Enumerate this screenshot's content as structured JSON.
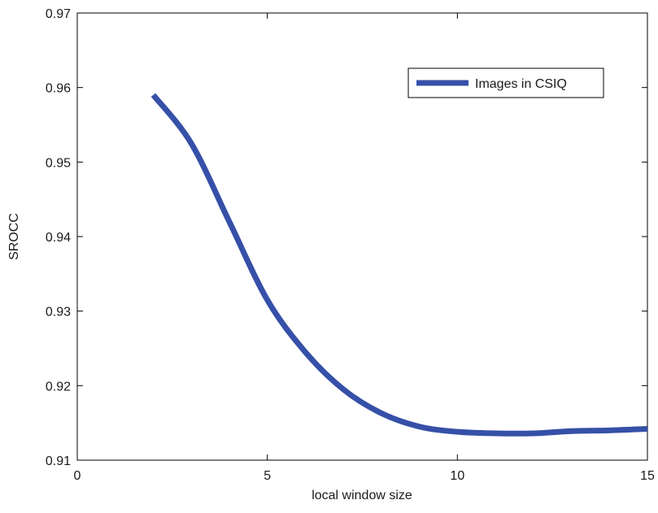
{
  "chart_data": {
    "type": "line",
    "xlabel": "local window size",
    "ylabel": "SROCC",
    "xlim": [
      0,
      15
    ],
    "ylim": [
      0.91,
      0.97
    ],
    "x_ticks": [
      0,
      5,
      10,
      15
    ],
    "x_tick_labels": [
      "0",
      "5",
      "10",
      "15"
    ],
    "y_ticks": [
      0.91,
      0.92,
      0.93,
      0.94,
      0.95,
      0.96,
      0.97
    ],
    "y_tick_labels": [
      "0.91",
      "0.92",
      "0.93",
      "0.94",
      "0.95",
      "0.96",
      "0.97"
    ],
    "grid": false,
    "legend_position": "top-right",
    "series": [
      {
        "name": "Images in CSIQ",
        "color": "#3650a8",
        "x": [
          2,
          3,
          4,
          5,
          6,
          7,
          8,
          9,
          10,
          11,
          12,
          13,
          14,
          15
        ],
        "y": [
          0.959,
          0.9525,
          0.942,
          0.9315,
          0.9245,
          0.9195,
          0.9163,
          0.9145,
          0.9138,
          0.9136,
          0.9136,
          0.9139,
          0.914,
          0.9142
        ]
      }
    ]
  }
}
